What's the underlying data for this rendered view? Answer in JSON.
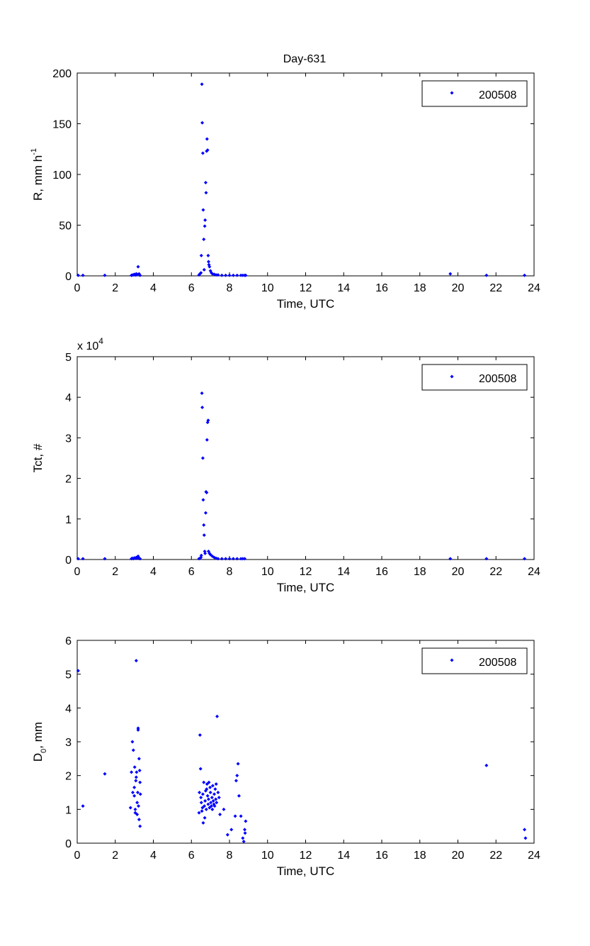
{
  "figure": {
    "title": "Day-631"
  },
  "colors": {
    "marker": "#0000ff",
    "axes": "#000000",
    "background": "#ffffff"
  },
  "chart_data": [
    {
      "type": "scatter",
      "title": "Day-631",
      "xlabel": "Time, UTC",
      "ylabel_main": "R, mm h",
      "ylabel_sup": "-1",
      "xlim": [
        0,
        24
      ],
      "ylim": [
        0,
        200
      ],
      "xticks": [
        0,
        2,
        4,
        6,
        8,
        10,
        12,
        14,
        16,
        18,
        20,
        22,
        24
      ],
      "yticks": [
        0,
        50,
        100,
        150,
        200
      ],
      "exponent_label": "",
      "legend": {
        "label": "200508",
        "placement": "top-right"
      },
      "series": [
        {
          "name": "200508",
          "x": [
            0.05,
            0.3,
            1.45,
            2.85,
            2.9,
            2.95,
            3.0,
            3.05,
            3.1,
            3.15,
            3.2,
            3.25,
            3.3,
            3.1,
            6.4,
            6.45,
            6.5,
            6.52,
            6.55,
            6.57,
            6.6,
            6.62,
            6.65,
            6.67,
            6.7,
            6.72,
            6.75,
            6.77,
            6.8,
            6.82,
            6.85,
            6.88,
            6.9,
            6.92,
            6.95,
            7.0,
            7.05,
            7.1,
            7.2,
            7.3,
            7.4,
            7.6,
            7.8,
            8.0,
            8.2,
            8.4,
            8.6,
            8.7,
            8.8,
            8.85,
            19.6,
            21.5,
            23.5
          ],
          "y": [
            0.5,
            0.5,
            0.5,
            0.5,
            0.8,
            1.0,
            1.5,
            0.8,
            2.0,
            1.5,
            9.0,
            2.0,
            0.5,
            1.0,
            1.0,
            2.0,
            3.0,
            20.0,
            189.0,
            151.0,
            121.0,
            65.0,
            36.0,
            6.0,
            49.0,
            55.0,
            92.0,
            82.0,
            123.0,
            135.0,
            124.0,
            20.0,
            14.0,
            11.0,
            9.0,
            5.0,
            3.0,
            2.0,
            1.5,
            1.0,
            1.0,
            0.5,
            0.5,
            0.5,
            0.5,
            0.5,
            0.5,
            0.5,
            0.5,
            0.5,
            2.0,
            0.5,
            0.5
          ]
        }
      ]
    },
    {
      "type": "scatter",
      "title": "",
      "xlabel": "Time, UTC",
      "ylabel_main": "Tct, #",
      "ylabel_sup": "",
      "xlim": [
        0,
        24
      ],
      "ylim": [
        0,
        50000
      ],
      "xticks": [
        0,
        2,
        4,
        6,
        8,
        10,
        12,
        14,
        16,
        18,
        20,
        22,
        24
      ],
      "yticks": [
        0,
        10000,
        20000,
        30000,
        40000,
        50000
      ],
      "ytick_labels": [
        "0",
        "1",
        "2",
        "3",
        "4",
        "5"
      ],
      "exponent_label": "x 10",
      "exponent_sup": "4",
      "legend": {
        "label": "200508",
        "placement": "top-right"
      },
      "series": [
        {
          "name": "200508",
          "x": [
            0.05,
            0.3,
            1.45,
            2.85,
            2.9,
            2.95,
            3.0,
            3.05,
            3.1,
            3.15,
            3.2,
            3.25,
            3.3,
            6.4,
            6.45,
            6.5,
            6.52,
            6.55,
            6.57,
            6.6,
            6.62,
            6.65,
            6.67,
            6.7,
            6.72,
            6.75,
            6.77,
            6.8,
            6.82,
            6.85,
            6.88,
            6.9,
            6.95,
            7.0,
            7.1,
            7.2,
            7.3,
            7.4,
            7.6,
            7.8,
            8.0,
            8.2,
            8.4,
            8.6,
            8.7,
            8.8,
            19.6,
            21.5,
            23.5
          ],
          "y": [
            200,
            200,
            200,
            200,
            300,
            200,
            400,
            300,
            500,
            300,
            800,
            300,
            200,
            200,
            300,
            500,
            1000,
            41000,
            37500,
            25000,
            14700,
            8500,
            6000,
            2000,
            1500,
            11500,
            16700,
            16500,
            29500,
            33800,
            34300,
            2000,
            1500,
            1200,
            800,
            500,
            300,
            200,
            200,
            200,
            200,
            200,
            200,
            200,
            200,
            200,
            200,
            200,
            200
          ]
        }
      ]
    },
    {
      "type": "scatter",
      "title": "",
      "xlabel": "Time, UTC",
      "ylabel_main": "D",
      "ylabel_sub": "0",
      "ylabel_rest": ", mm",
      "xlim": [
        0,
        24
      ],
      "ylim": [
        0,
        6
      ],
      "xticks": [
        0,
        2,
        4,
        6,
        8,
        10,
        12,
        14,
        16,
        18,
        20,
        22,
        24
      ],
      "yticks": [
        0,
        1,
        2,
        3,
        4,
        5,
        6
      ],
      "exponent_label": "",
      "legend": {
        "label": "200508",
        "placement": "top-right"
      },
      "series": [
        {
          "name": "200508",
          "x": [
            0.05,
            0.3,
            1.45,
            2.8,
            2.85,
            2.9,
            2.92,
            2.95,
            3.0,
            3.0,
            3.02,
            3.05,
            3.05,
            3.08,
            3.1,
            3.1,
            3.12,
            3.15,
            3.15,
            3.18,
            3.2,
            3.2,
            3.22,
            3.25,
            3.25,
            3.28,
            3.3,
            3.3,
            3.32,
            6.4,
            6.42,
            6.45,
            6.48,
            6.5,
            6.52,
            6.55,
            6.58,
            6.6,
            6.62,
            6.65,
            6.68,
            6.7,
            6.72,
            6.75,
            6.78,
            6.8,
            6.82,
            6.85,
            6.88,
            6.9,
            6.92,
            6.95,
            6.98,
            7.0,
            7.02,
            7.05,
            7.08,
            7.1,
            7.12,
            7.15,
            7.18,
            7.2,
            7.22,
            7.25,
            7.28,
            7.3,
            7.32,
            7.35,
            7.4,
            7.45,
            7.5,
            7.7,
            7.9,
            8.1,
            8.3,
            8.35,
            8.4,
            8.45,
            8.5,
            8.6,
            8.7,
            8.75,
            8.8,
            8.82,
            8.85,
            21.5,
            23.5,
            23.55
          ],
          "y": [
            5.1,
            1.1,
            2.05,
            1.05,
            2.1,
            3.0,
            1.5,
            2.75,
            1.65,
            1.4,
            2.25,
            1.0,
            0.9,
            1.85,
            5.4,
            1.95,
            2.1,
            1.2,
            0.85,
            1.5,
            3.35,
            3.4,
            1.1,
            2.5,
            0.7,
            2.15,
            1.8,
            0.5,
            1.45,
            0.9,
            1.5,
            3.2,
            2.2,
            1.35,
            1.2,
            0.95,
            1.05,
            1.45,
            0.6,
            1.8,
            1.1,
            0.75,
            1.25,
            1.55,
            1.0,
            1.6,
            1.75,
            1.4,
            1.15,
            1.3,
            1.8,
            1.05,
            1.65,
            1.5,
            1.2,
            1.1,
            1.35,
            1.0,
            1.7,
            1.25,
            1.15,
            1.45,
            1.1,
            1.6,
            1.3,
            1.75,
            1.2,
            3.75,
            1.5,
            1.35,
            0.85,
            1.0,
            0.25,
            0.4,
            0.8,
            1.85,
            2.0,
            2.35,
            1.4,
            0.8,
            0.15,
            0.05,
            0.4,
            0.3,
            0.65,
            2.3,
            0.4,
            0.15
          ]
        }
      ]
    }
  ]
}
